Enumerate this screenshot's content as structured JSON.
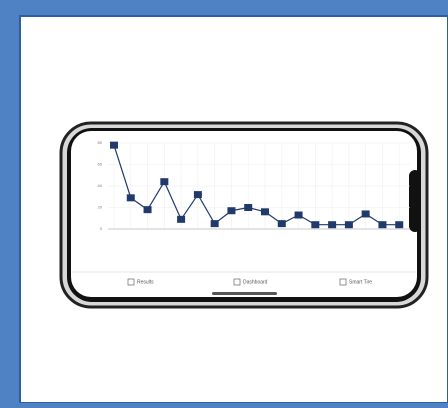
{
  "chart_data": {
    "type": "line",
    "categories": [
      null,
      null,
      null,
      null,
      null,
      null,
      null,
      null,
      null,
      null,
      null,
      null,
      null,
      null,
      null,
      null,
      null,
      null
    ],
    "series": [
      {
        "color": "#1f3a6b",
        "values": [
          78,
          29,
          18,
          44,
          9,
          32,
          5,
          17,
          20,
          16,
          5,
          13,
          4,
          4,
          4,
          14,
          4,
          4
        ]
      }
    ],
    "ylim": [
      0,
      80
    ],
    "yticks": [
      0,
      20,
      40,
      60,
      80
    ],
    "grid": true
  },
  "nav": {
    "items": [
      "Results",
      "Dashboard",
      "Smart Tire"
    ]
  }
}
